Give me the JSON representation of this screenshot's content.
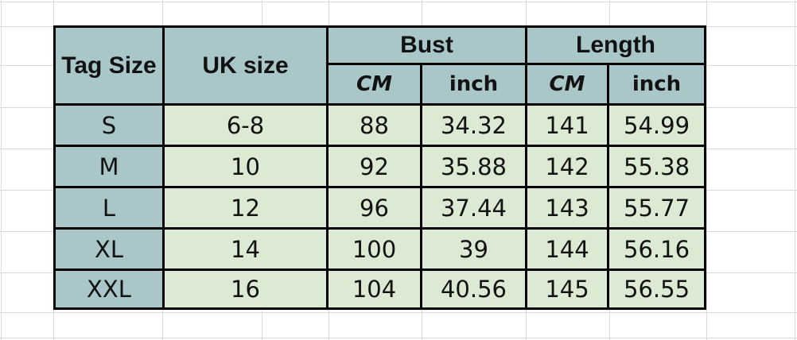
{
  "colors": {
    "header_fill": "#a9c6c8",
    "data_fill": "#dcead3",
    "border": "#000000",
    "gridline": "#d9d9d9"
  },
  "table": {
    "header": {
      "tag_size": "Tag Size",
      "uk_size": "UK size",
      "bust": "Bust",
      "length": "Length",
      "cm": "CM",
      "inch": "inch"
    },
    "rows": [
      {
        "tag": "S",
        "uk": "6-8",
        "bust_cm": "88",
        "bust_inch": "34.32",
        "len_cm": "141",
        "len_inch": "54.99"
      },
      {
        "tag": "M",
        "uk": "10",
        "bust_cm": "92",
        "bust_inch": "35.88",
        "len_cm": "142",
        "len_inch": "55.38"
      },
      {
        "tag": "L",
        "uk": "12",
        "bust_cm": "96",
        "bust_inch": "37.44",
        "len_cm": "143",
        "len_inch": "55.77"
      },
      {
        "tag": "XL",
        "uk": "14",
        "bust_cm": "100",
        "bust_inch": "39",
        "len_cm": "144",
        "len_inch": "56.16"
      },
      {
        "tag": "XXL",
        "uk": "16",
        "bust_cm": "104",
        "bust_inch": "40.56",
        "len_cm": "145",
        "len_inch": "56.55"
      }
    ]
  }
}
